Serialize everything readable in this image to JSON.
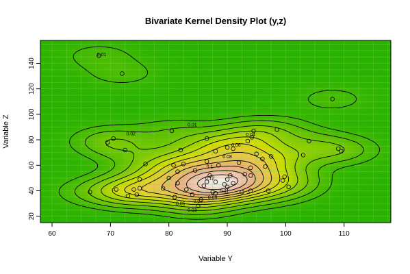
{
  "chart_data": {
    "type": "contour",
    "title": "Bivariate Kernel Density Plot (y,z)",
    "xlabel": "Variable Y",
    "ylabel": "Variable Z",
    "xlim": [
      58,
      118
    ],
    "ylim": [
      15,
      158
    ],
    "xticks": [
      60,
      70,
      80,
      90,
      100,
      110
    ],
    "yticks": [
      20,
      40,
      60,
      80,
      100,
      120,
      140
    ],
    "grid": true,
    "contour_labels": [
      {
        "text": "0.01",
        "x": 68.5,
        "y": 147
      },
      {
        "text": "0.01",
        "x": 84,
        "y": 92
      },
      {
        "text": "0.02",
        "x": 73.5,
        "y": 85
      },
      {
        "text": "0.04",
        "x": 94,
        "y": 84
      },
      {
        "text": "0.06",
        "x": 91.5,
        "y": 76
      },
      {
        "text": "0.08",
        "x": 90,
        "y": 67
      },
      {
        "text": "0.1",
        "x": 87,
        "y": 59
      },
      {
        "text": "0.12",
        "x": 87,
        "y": 50
      },
      {
        "text": "0.11",
        "x": 89.5,
        "y": 40
      },
      {
        "text": "0.09",
        "x": 87.5,
        "y": 35
      },
      {
        "text": "0.07",
        "x": 85,
        "y": 32
      },
      {
        "text": "0.05",
        "x": 82,
        "y": 30
      },
      {
        "text": "0.03",
        "x": 84,
        "y": 25
      }
    ],
    "points": [
      [
        66.5,
        39
      ],
      [
        68,
        146
      ],
      [
        69.5,
        78
      ],
      [
        70.5,
        81
      ],
      [
        71,
        41
      ],
      [
        72,
        132
      ],
      [
        72.5,
        72
      ],
      [
        73,
        36
      ],
      [
        74,
        41
      ],
      [
        74.5,
        37
      ],
      [
        75,
        42
      ],
      [
        75,
        49
      ],
      [
        76,
        61
      ],
      [
        79,
        42
      ],
      [
        80,
        50
      ],
      [
        80.5,
        87
      ],
      [
        80.8,
        60
      ],
      [
        81,
        35
      ],
      [
        81.5,
        46
      ],
      [
        81.5,
        55
      ],
      [
        82,
        72
      ],
      [
        82.5,
        61
      ],
      [
        83,
        41
      ],
      [
        84,
        37
      ],
      [
        84.5,
        56
      ],
      [
        85,
        28
      ],
      [
        85.5,
        33
      ],
      [
        86,
        44
      ],
      [
        86.5,
        47
      ],
      [
        86.5,
        63
      ],
      [
        86.5,
        81
      ],
      [
        87,
        52
      ],
      [
        87.5,
        39
      ],
      [
        88,
        38
      ],
      [
        88,
        47
      ],
      [
        88,
        71
      ],
      [
        88.5,
        60
      ],
      [
        89.5,
        45
      ],
      [
        90,
        43
      ],
      [
        90,
        49
      ],
      [
        90,
        74
      ],
      [
        90.5,
        52
      ],
      [
        91,
        46
      ],
      [
        91,
        73
      ],
      [
        92,
        62
      ],
      [
        92.5,
        39
      ],
      [
        93,
        53
      ],
      [
        93.5,
        79
      ],
      [
        94,
        40
      ],
      [
        94,
        52
      ],
      [
        94,
        58
      ],
      [
        94.2,
        82
      ],
      [
        94.5,
        87
      ],
      [
        95,
        69
      ],
      [
        96,
        65
      ],
      [
        96.5,
        59
      ],
      [
        97,
        40
      ],
      [
        97.5,
        67
      ],
      [
        98.5,
        88
      ],
      [
        99.5,
        48
      ],
      [
        99.8,
        51
      ],
      [
        100.5,
        43
      ],
      [
        103,
        68
      ],
      [
        104,
        79
      ],
      [
        108,
        112
      ],
      [
        109,
        73
      ],
      [
        109.5,
        71
      ]
    ]
  }
}
